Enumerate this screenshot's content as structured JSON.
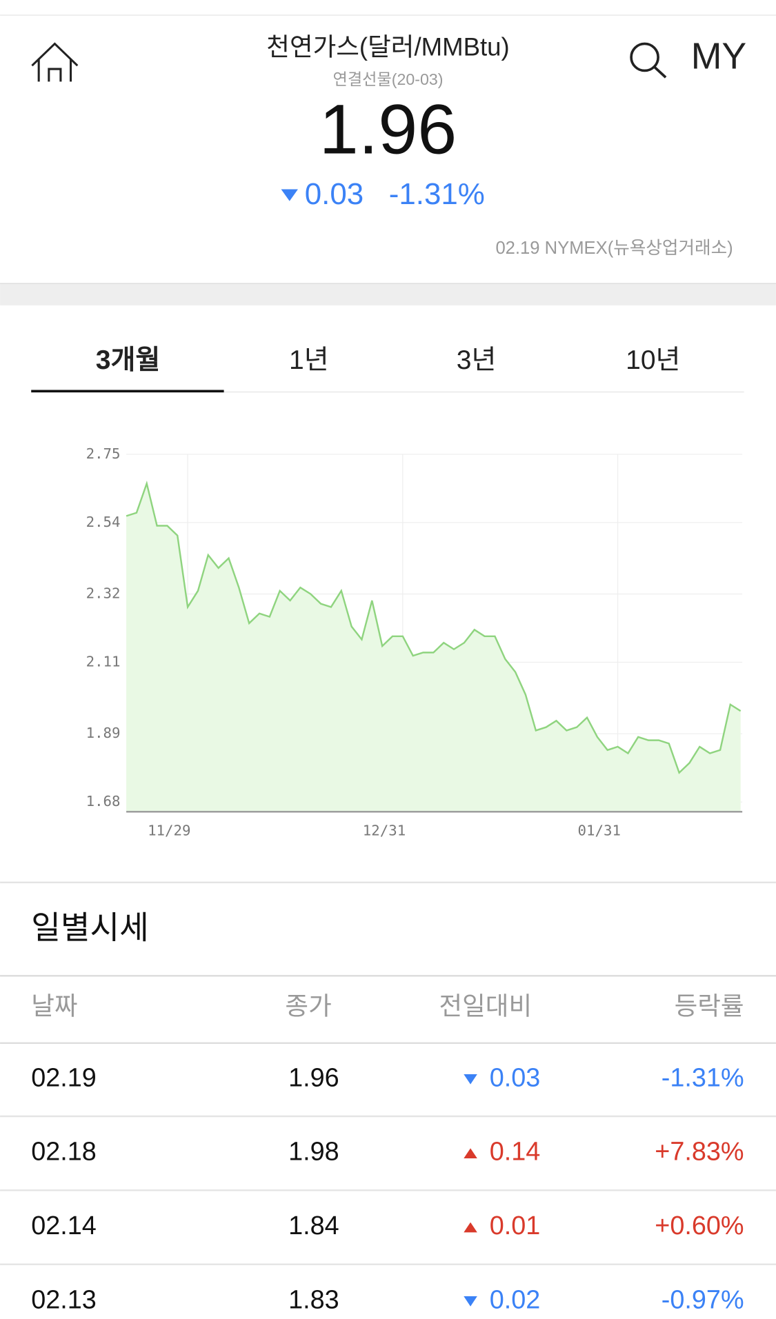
{
  "header": {
    "title": "천연가스(달러/MMBtu)",
    "subtitle": "연결선물(20-03)",
    "price": "1.96",
    "change": "0.03",
    "rate": "-1.31%",
    "info": "02.19 NYMEX(뉴욕상업거래소)",
    "my": "MY"
  },
  "tabs": [
    "3개월",
    "1년",
    "3년",
    "10년"
  ],
  "chart_data": {
    "type": "area",
    "color": "#8fd47f",
    "fill": "#e9f9e4",
    "grid": true,
    "categories": [
      null,
      null,
      null,
      null,
      null,
      null,
      "11/29",
      null,
      null,
      null,
      null,
      null,
      null,
      null,
      null,
      null,
      null,
      null,
      null,
      null,
      null,
      null,
      null,
      null,
      null,
      null,
      null,
      "12/31",
      null,
      null,
      null,
      null,
      null,
      null,
      null,
      null,
      null,
      null,
      null,
      null,
      null,
      null,
      null,
      null,
      null,
      null,
      null,
      null,
      "01/31",
      null,
      null,
      null,
      null,
      null,
      null,
      null,
      null,
      null,
      null,
      null,
      null
    ],
    "values": [
      2.56,
      2.57,
      2.66,
      2.53,
      2.53,
      2.5,
      2.28,
      2.33,
      2.44,
      2.4,
      2.43,
      2.34,
      2.23,
      2.26,
      2.25,
      2.33,
      2.3,
      2.34,
      2.32,
      2.29,
      2.28,
      2.33,
      2.22,
      2.18,
      2.3,
      2.16,
      2.19,
      2.19,
      2.13,
      2.14,
      2.14,
      2.17,
      2.15,
      2.17,
      2.21,
      2.19,
      2.19,
      2.12,
      2.08,
      2.01,
      1.9,
      1.91,
      1.93,
      1.9,
      1.91,
      1.94,
      1.88,
      1.84,
      1.85,
      1.83,
      1.88,
      1.87,
      1.87,
      1.86,
      1.77,
      1.8,
      1.85,
      1.83,
      1.84,
      1.98,
      1.96
    ],
    "ylim": [
      1.65,
      2.75
    ],
    "yticks": [
      1.68,
      1.89,
      2.11,
      2.32,
      2.54,
      2.75
    ]
  },
  "daily": {
    "title": "일별시세",
    "columns": [
      "날짜",
      "종가",
      "전일대비",
      "등락률"
    ],
    "rows": [
      [
        "02.19",
        "1.96",
        "0.03",
        "-1.31%"
      ],
      [
        "02.18",
        "1.98",
        "0.14",
        "+7.83%"
      ],
      [
        "02.14",
        "1.84",
        "0.01",
        "+0.60%"
      ],
      [
        "02.13",
        "1.83",
        "0.02",
        "-0.97%"
      ]
    ]
  }
}
